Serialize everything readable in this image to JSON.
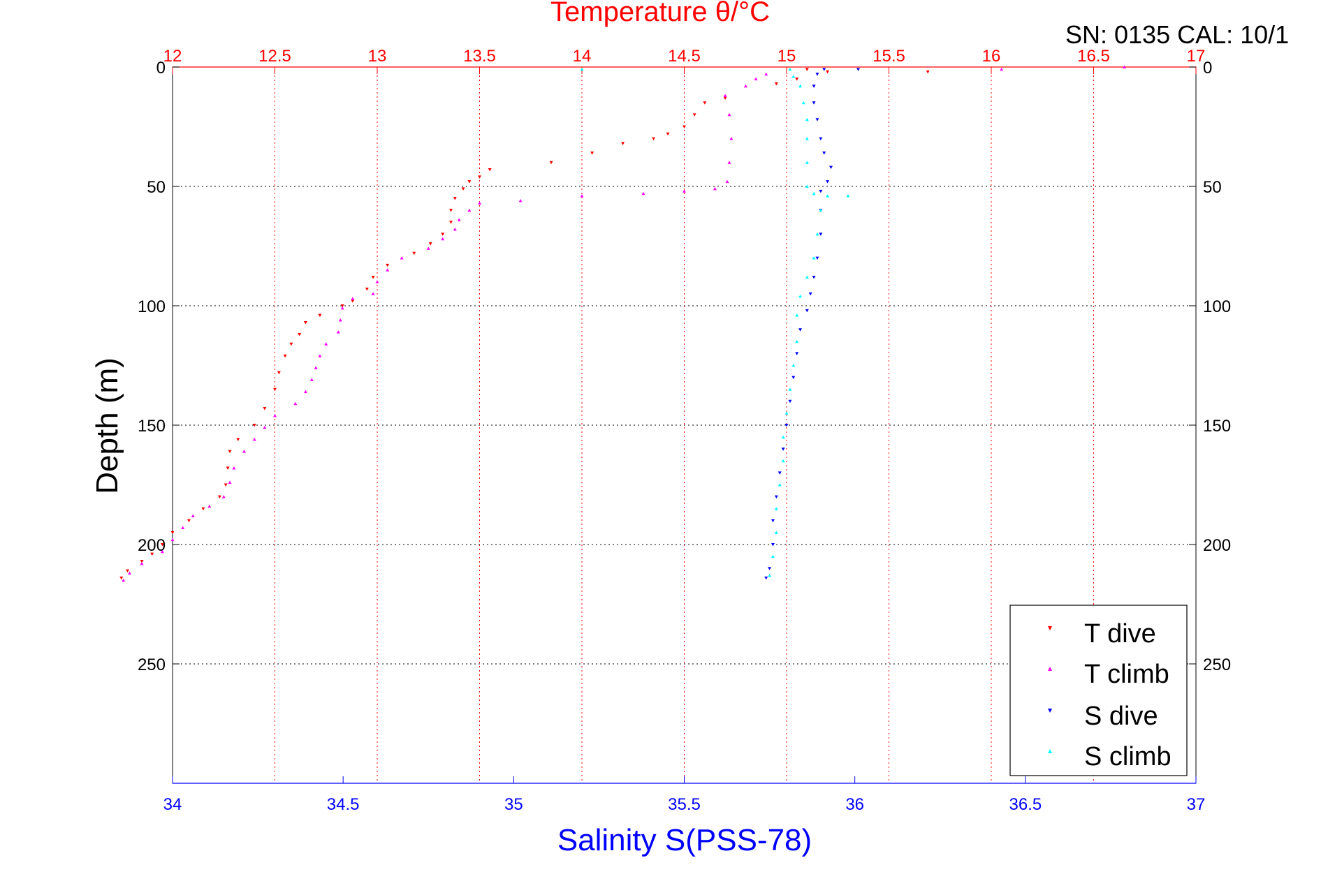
{
  "header": {
    "serial_text": "SN: 0135  CAL: 10/1"
  },
  "chart_data": {
    "type": "scatter",
    "title": "Temperature θ/°C",
    "xlabel": "Salinity S(PSS-78)",
    "ylabel": "Depth (m)",
    "grid": true,
    "legend_position": "bottom-right",
    "axes": {
      "temperature": {
        "range": [
          12,
          17
        ],
        "ticks": [
          "12",
          "12.5",
          "13",
          "13.5",
          "14",
          "14.5",
          "15",
          "15.5",
          "16",
          "16.5",
          "17"
        ],
        "color": "#ff0000",
        "position": "top"
      },
      "salinity": {
        "range": [
          34,
          37
        ],
        "ticks": [
          "34",
          "34.5",
          "35",
          "35.5",
          "36",
          "36.5",
          "37"
        ],
        "color": "#0000ff",
        "position": "bottom"
      },
      "depth": {
        "range": [
          0,
          300
        ],
        "reversed": true,
        "ticks": [
          "0",
          "50",
          "100",
          "150",
          "200",
          "250"
        ]
      }
    },
    "series": [
      {
        "name": "T dive",
        "axis": "temperature",
        "color": "#ff0000",
        "marker": "triangle-down",
        "points": [
          [
            15.1,
            1
          ],
          [
            15.2,
            2
          ],
          [
            15.69,
            2
          ],
          [
            15.05,
            5
          ],
          [
            14.95,
            7
          ],
          [
            14.7,
            13
          ],
          [
            14.6,
            15
          ],
          [
            14.55,
            20
          ],
          [
            14.5,
            25
          ],
          [
            14.42,
            28
          ],
          [
            14.35,
            30
          ],
          [
            14.2,
            32
          ],
          [
            14.05,
            36
          ],
          [
            13.85,
            40
          ],
          [
            13.55,
            43
          ],
          [
            13.5,
            46
          ],
          [
            13.45,
            48
          ],
          [
            13.42,
            51
          ],
          [
            13.38,
            55
          ],
          [
            13.36,
            60
          ],
          [
            13.36,
            65
          ],
          [
            13.32,
            70
          ],
          [
            13.26,
            74
          ],
          [
            13.18,
            78
          ],
          [
            13.05,
            83
          ],
          [
            12.98,
            88
          ],
          [
            12.95,
            93
          ],
          [
            12.88,
            98
          ],
          [
            12.83,
            100
          ],
          [
            12.72,
            104
          ],
          [
            12.65,
            107
          ],
          [
            12.62,
            112
          ],
          [
            12.58,
            116
          ],
          [
            12.55,
            121
          ],
          [
            12.52,
            128
          ],
          [
            12.5,
            135
          ],
          [
            12.45,
            143
          ],
          [
            12.4,
            150
          ],
          [
            12.32,
            156
          ],
          [
            12.28,
            161
          ],
          [
            12.27,
            168
          ],
          [
            12.26,
            175
          ],
          [
            12.23,
            180
          ],
          [
            12.15,
            185
          ],
          [
            12.08,
            190
          ],
          [
            12.0,
            195
          ],
          [
            11.95,
            200
          ],
          [
            11.9,
            204
          ],
          [
            11.85,
            207
          ],
          [
            11.78,
            211
          ],
          [
            11.75,
            214
          ]
        ]
      },
      {
        "name": "T climb",
        "axis": "temperature",
        "color": "#ff00ff",
        "marker": "triangle-up",
        "points": [
          [
            16.05,
            1
          ],
          [
            16.65,
            0
          ],
          [
            14.9,
            3
          ],
          [
            14.85,
            5
          ],
          [
            14.8,
            8
          ],
          [
            14.7,
            12
          ],
          [
            14.72,
            20
          ],
          [
            14.73,
            30
          ],
          [
            14.72,
            40
          ],
          [
            14.71,
            48
          ],
          [
            14.65,
            51
          ],
          [
            14.5,
            52
          ],
          [
            14.3,
            53
          ],
          [
            14.0,
            54
          ],
          [
            13.7,
            56
          ],
          [
            13.5,
            57
          ],
          [
            13.45,
            60
          ],
          [
            13.4,
            64
          ],
          [
            13.38,
            68
          ],
          [
            13.32,
            72
          ],
          [
            13.25,
            76
          ],
          [
            13.12,
            80
          ],
          [
            13.05,
            85
          ],
          [
            13.0,
            90
          ],
          [
            12.98,
            95
          ],
          [
            12.88,
            97
          ],
          [
            12.83,
            101
          ],
          [
            12.82,
            106
          ],
          [
            12.81,
            111
          ],
          [
            12.75,
            116
          ],
          [
            12.72,
            121
          ],
          [
            12.7,
            126
          ],
          [
            12.68,
            131
          ],
          [
            12.65,
            136
          ],
          [
            12.6,
            141
          ],
          [
            12.5,
            146
          ],
          [
            12.45,
            151
          ],
          [
            12.4,
            156
          ],
          [
            12.35,
            161
          ],
          [
            12.3,
            168
          ],
          [
            12.28,
            174
          ],
          [
            12.25,
            180
          ],
          [
            12.18,
            184
          ],
          [
            12.1,
            188
          ],
          [
            12.05,
            193
          ],
          [
            12.0,
            198
          ],
          [
            11.95,
            203
          ],
          [
            11.85,
            208
          ],
          [
            11.79,
            212
          ],
          [
            11.76,
            215
          ]
        ]
      },
      {
        "name": "S dive",
        "axis": "salinity",
        "color": "#0000ff",
        "marker": "triangle-down",
        "points": [
          [
            36.01,
            1
          ],
          [
            35.91,
            1
          ],
          [
            35.89,
            3
          ],
          [
            35.88,
            8
          ],
          [
            35.88,
            15
          ],
          [
            35.89,
            22
          ],
          [
            35.9,
            30
          ],
          [
            35.91,
            36
          ],
          [
            35.93,
            42
          ],
          [
            35.92,
            48
          ],
          [
            35.9,
            52
          ],
          [
            35.9,
            60
          ],
          [
            35.9,
            70
          ],
          [
            35.89,
            80
          ],
          [
            35.88,
            88
          ],
          [
            35.87,
            95
          ],
          [
            35.86,
            102
          ],
          [
            35.84,
            110
          ],
          [
            35.83,
            120
          ],
          [
            35.82,
            130
          ],
          [
            35.81,
            140
          ],
          [
            35.8,
            150
          ],
          [
            35.79,
            160
          ],
          [
            35.78,
            170
          ],
          [
            35.77,
            180
          ],
          [
            35.76,
            190
          ],
          [
            35.76,
            200
          ],
          [
            35.75,
            210
          ],
          [
            35.74,
            214
          ]
        ]
      },
      {
        "name": "S climb",
        "axis": "salinity",
        "color": "#00ffff",
        "marker": "triangle-up",
        "points": [
          [
            35.2,
            1
          ],
          [
            35.81,
            1
          ],
          [
            35.82,
            4
          ],
          [
            35.84,
            8
          ],
          [
            35.85,
            15
          ],
          [
            35.86,
            22
          ],
          [
            35.86,
            30
          ],
          [
            35.86,
            40
          ],
          [
            35.86,
            50
          ],
          [
            35.88,
            53
          ],
          [
            35.92,
            54
          ],
          [
            35.98,
            54
          ],
          [
            35.9,
            60
          ],
          [
            35.89,
            70
          ],
          [
            35.88,
            80
          ],
          [
            35.86,
            88
          ],
          [
            35.84,
            96
          ],
          [
            35.83,
            104
          ],
          [
            35.83,
            115
          ],
          [
            35.82,
            125
          ],
          [
            35.81,
            135
          ],
          [
            35.8,
            145
          ],
          [
            35.79,
            155
          ],
          [
            35.79,
            165
          ],
          [
            35.78,
            175
          ],
          [
            35.77,
            185
          ],
          [
            35.77,
            195
          ],
          [
            35.76,
            205
          ],
          [
            35.75,
            213
          ]
        ]
      }
    ]
  }
}
